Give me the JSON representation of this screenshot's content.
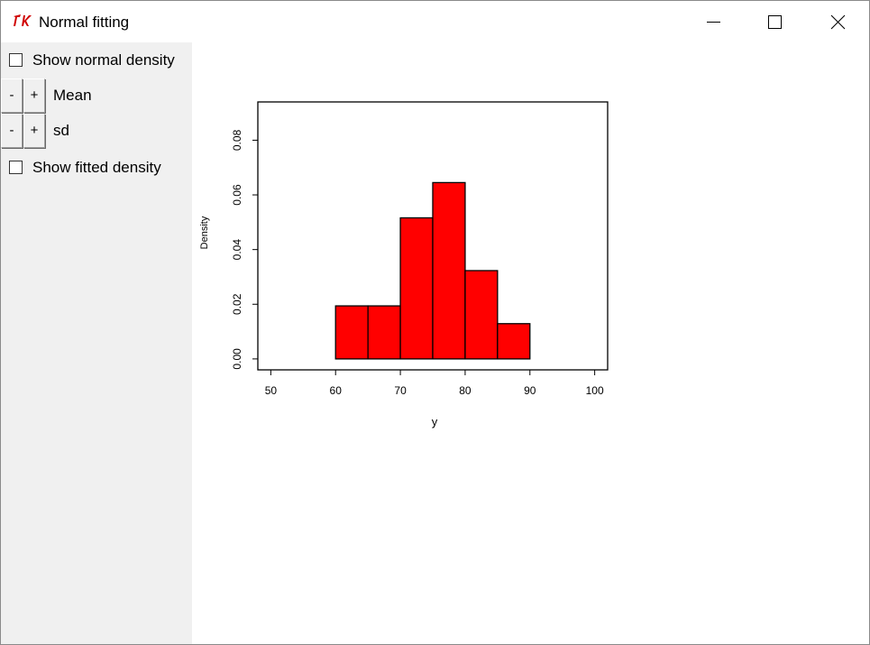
{
  "window": {
    "title": "Normal fitting",
    "icon": "tk-feather-icon"
  },
  "controls": {
    "show_normal": {
      "label": "Show normal density",
      "checked": false
    },
    "mean": {
      "label": "Mean",
      "minus": "-",
      "plus": "+"
    },
    "sd": {
      "label": "sd",
      "minus": "-",
      "plus": "+"
    },
    "show_fitted": {
      "label": "Show fitted density",
      "checked": false
    }
  },
  "chart_data": {
    "type": "bar",
    "title": "",
    "xlabel": "y",
    "ylabel": "Density",
    "xlim": [
      48,
      102
    ],
    "ylim": [
      -0.004,
      0.094
    ],
    "x_ticks": [
      50,
      60,
      70,
      80,
      90,
      100
    ],
    "x_tick_labels": [
      "50",
      "60",
      "70",
      "80",
      "90",
      "100"
    ],
    "y_ticks": [
      0.0,
      0.02,
      0.04,
      0.06,
      0.08
    ],
    "y_tick_labels": [
      "0.00",
      "0.02",
      "0.04",
      "0.06",
      "0.08"
    ],
    "bins": [
      {
        "x0": 60,
        "x1": 65,
        "value": 0.0194
      },
      {
        "x0": 65,
        "x1": 70,
        "value": 0.0194
      },
      {
        "x0": 70,
        "x1": 75,
        "value": 0.0516
      },
      {
        "x0": 75,
        "x1": 80,
        "value": 0.0645
      },
      {
        "x0": 80,
        "x1": 85,
        "value": 0.0323
      },
      {
        "x0": 85,
        "x1": 90,
        "value": 0.0129
      }
    ],
    "bar_color": "#ff0000",
    "bar_edge_color": "#000000",
    "grid": false
  }
}
